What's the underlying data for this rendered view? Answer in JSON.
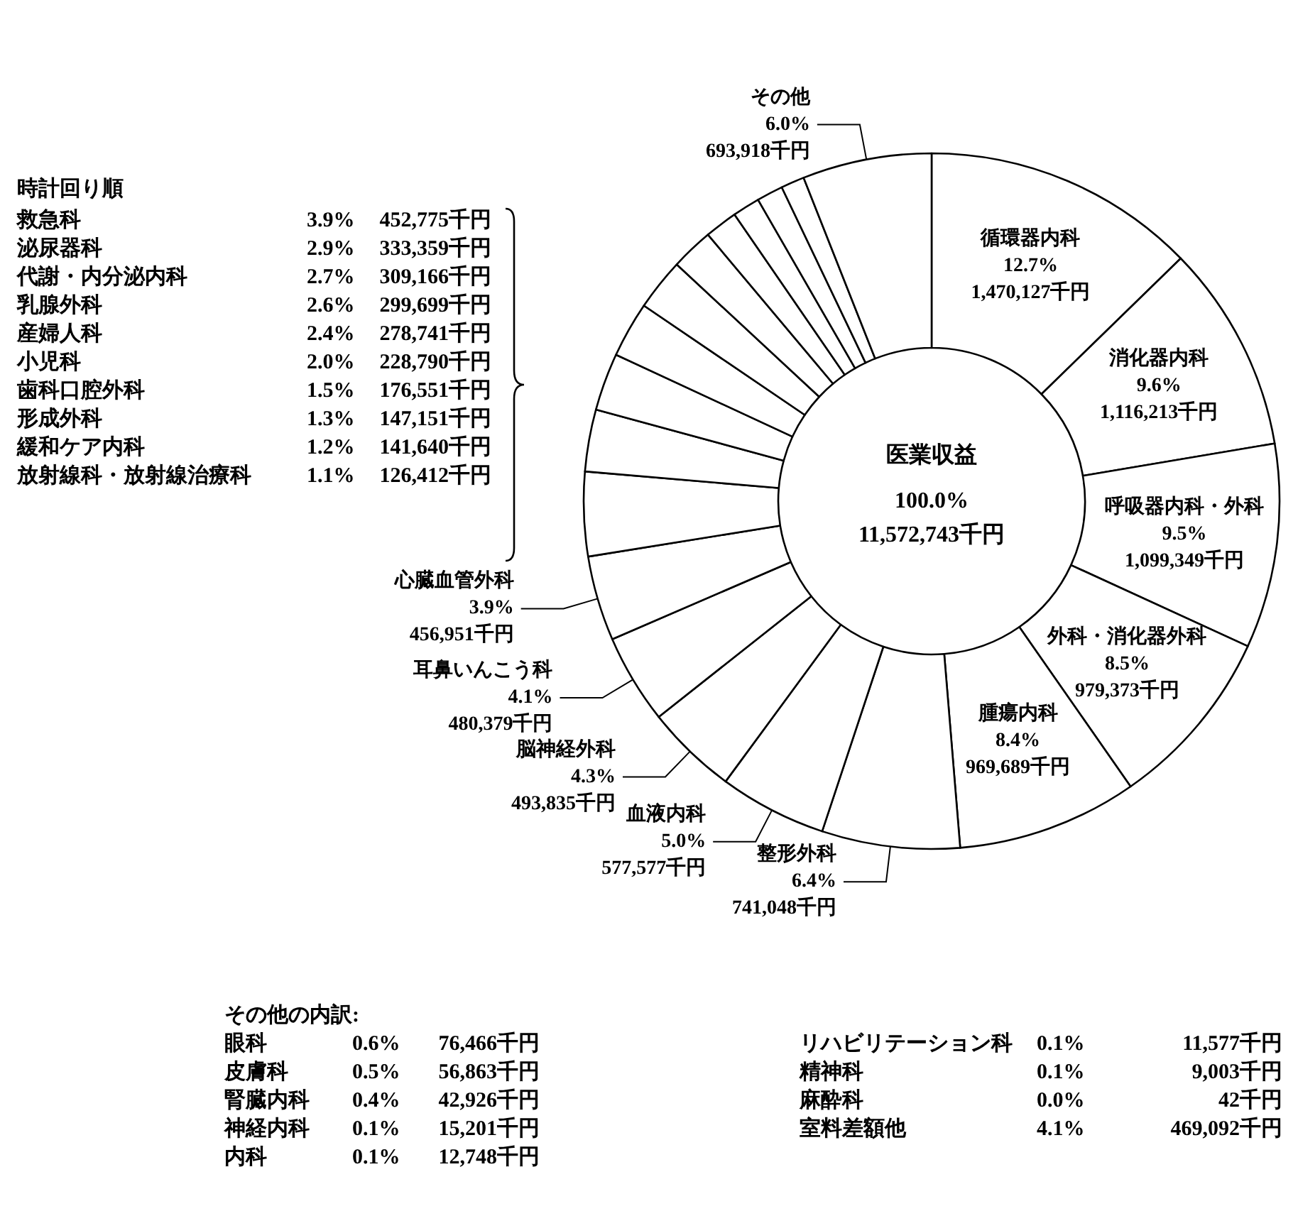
{
  "chart_data": {
    "type": "donut",
    "title": "医業収益",
    "subtitle": "100.0%\n11,572,743千円",
    "categories": [
      "循環器内科",
      "消化器内科",
      "呼吸器内科・外科",
      "外科・消化器外科",
      "腫瘍内科",
      "整形外科",
      "血液内科",
      "脳神経外科",
      "耳鼻いんこう科",
      "心臓血管外科",
      null,
      null,
      null,
      null,
      null,
      null,
      null,
      null,
      null,
      null,
      "その他"
    ],
    "values": [
      1470127,
      1116213,
      1099349,
      979373,
      969689,
      741048,
      577577,
      493835,
      480379,
      456951,
      452775,
      333359,
      309166,
      299699,
      278741,
      228790,
      176551,
      147151,
      141640,
      126412,
      693918
    ],
    "colors": [
      "#ffffff",
      "#ffffff",
      "#ffffff",
      "#ffffff",
      "#ffffff",
      "#ffffff",
      "#ffffff",
      "#ffffff",
      "#ffffff",
      "#ffffff",
      "#ffffff",
      "#ffffff",
      "#ffffff",
      "#ffffff",
      "#ffffff",
      "#ffffff",
      "#ffffff",
      "#ffffff",
      "#ffffff",
      "#ffffff",
      "#ffffff"
    ],
    "value_labels": [
      "12.7%\n1,470,127千円",
      "9.6%\n1,116,213千円",
      "9.5%\n1,099,349千円",
      "8.5%\n979,373千円",
      "8.4%\n969,689千円",
      "6.4%\n741,048千円",
      "5.0%\n577,577千円",
      "4.3%\n493,835千円",
      "4.1%\n480,379千円",
      "3.9%\n456,951千円",
      null,
      null,
      null,
      null,
      null,
      null,
      null,
      null,
      null,
      null,
      "6.0%\n693,918千円"
    ],
    "legend": false,
    "annotations": [
      "時計回り順",
      "救急科\t3.9%\t452,775千円",
      "泌尿器科\t2.9%\t333,359千円",
      "代謝・内分泌内科\t2.7%\t309,166千円",
      "乳腺外科\t2.6%\t299,699千円",
      "産婦人科\t2.4%\t278,741千円",
      "小児科\t2.0%\t228,790千円",
      "歯科口腔外科\t1.5%\t176,551千円",
      "形成外科\t1.3%\t147,151千円",
      "緩和ケア内科\t1.2%\t141,640千円",
      "放射線科・放射線治療科\t1.1%\t126,412千円",
      "その他の内訳:",
      "眼科\t0.6%\t76,466千円",
      "皮膚科\t0.5%\t56,863千円",
      "腎臓内科\t0.4%\t42,926千円",
      "神経内科\t0.1%\t15,201千円",
      "内科\t0.1%\t12,748千円",
      "リハビリテーション科\t0.1%\t11,577千円",
      "精神科\t0.1%\t9,003千円",
      "麻酔科\t0.0%\t42千円",
      "室料差額他\t4.1%\t469,092千円"
    ]
  }
}
